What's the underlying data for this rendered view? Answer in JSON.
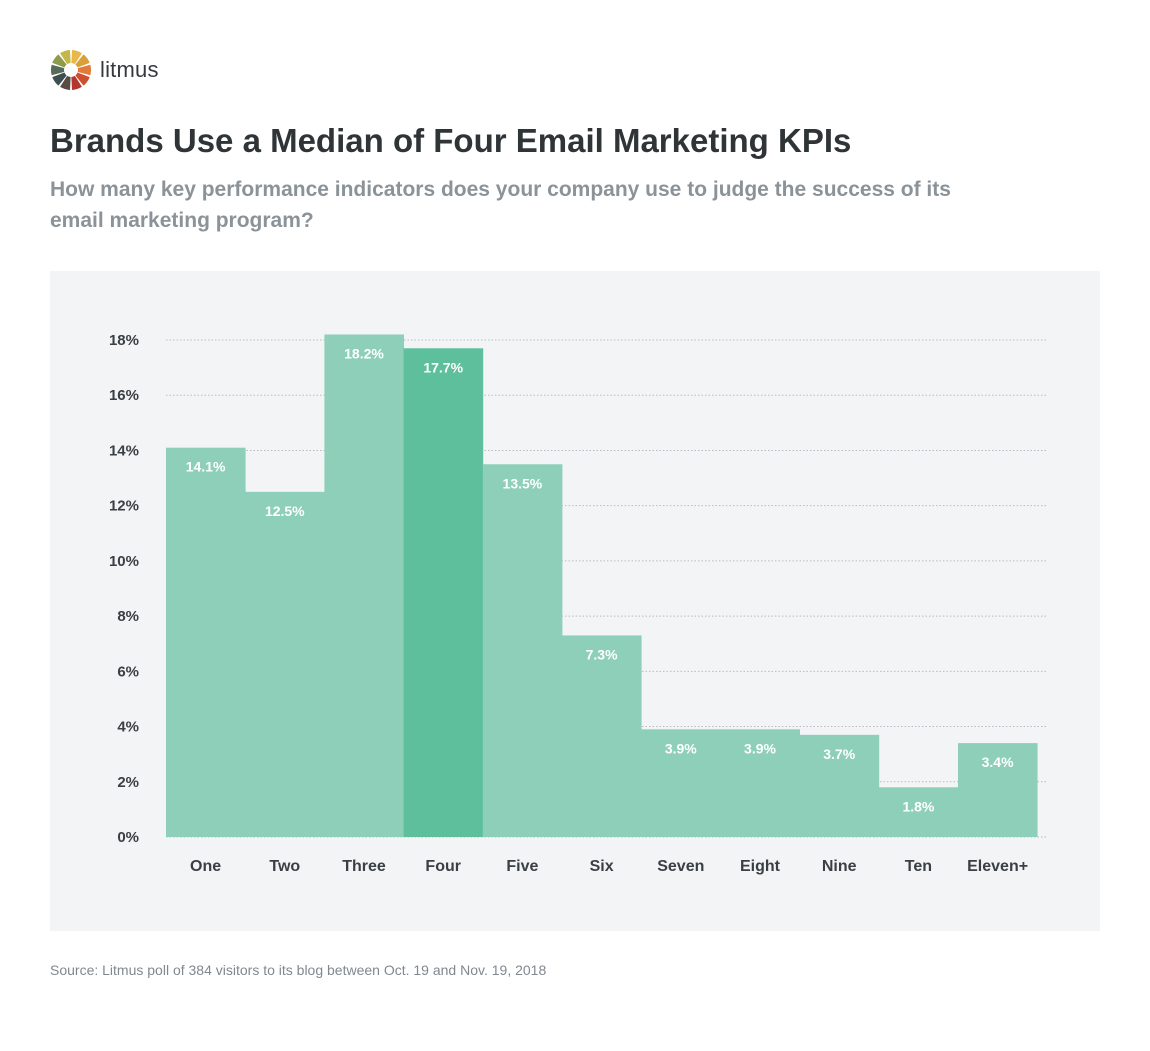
{
  "brand": {
    "name": "litmus",
    "logo_colors": [
      "#e8b94a",
      "#d9a03a",
      "#e07b39",
      "#cf4e2e",
      "#b3372f",
      "#5b4a43",
      "#3d4f4f",
      "#566b5a",
      "#8e9b4c",
      "#c4b846"
    ]
  },
  "header": {
    "title": "Brands Use a Median of Four Email Marketing KPIs",
    "subtitle": "How many key performance indicators does your company use to judge the success of its email marketing program?"
  },
  "footer": {
    "source": "Source: Litmus poll of 384 visitors to its blog between Oct. 19 and Nov. 19, 2018"
  },
  "colors": {
    "bar": "#8ecfb9",
    "bar_highlight": "#5dbf9c",
    "panel_bg": "#f3f4f6",
    "grid": "#b8bcc0"
  },
  "chart_data": {
    "type": "bar",
    "title": "Brands Use a Median of Four Email Marketing KPIs",
    "xlabel": "",
    "ylabel": "",
    "categories": [
      "One",
      "Two",
      "Three",
      "Four",
      "Five",
      "Six",
      "Seven",
      "Eight",
      "Nine",
      "Ten",
      "Eleven+"
    ],
    "values": [
      14.1,
      12.5,
      18.2,
      17.7,
      13.5,
      7.3,
      3.9,
      3.9,
      3.7,
      1.8,
      3.4
    ],
    "value_labels": [
      "14.1%",
      "12.5%",
      "18.2%",
      "17.7%",
      "13.5%",
      "7.3%",
      "3.9%",
      "3.9%",
      "3.7%",
      "1.8%",
      "3.4%"
    ],
    "highlight_category": "Four",
    "ylim": [
      0,
      18
    ],
    "yticks": [
      0,
      2,
      4,
      6,
      8,
      10,
      12,
      14,
      16,
      18
    ],
    "ytick_labels": [
      "0%",
      "2%",
      "4%",
      "6%",
      "8%",
      "10%",
      "12%",
      "14%",
      "16%",
      "18%"
    ],
    "grid": true,
    "legend": "none"
  }
}
